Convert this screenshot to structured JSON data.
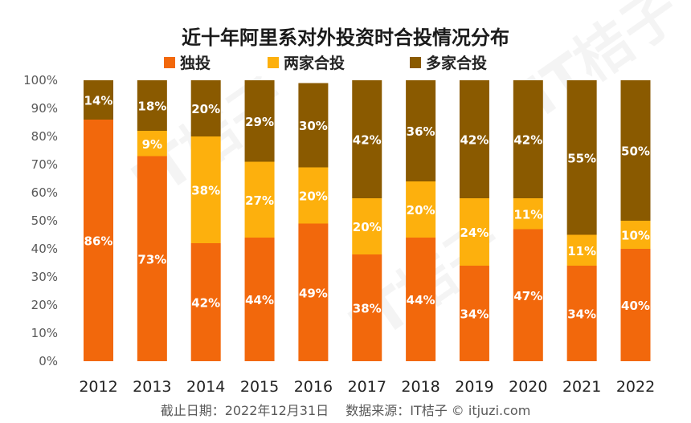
{
  "chart_data": {
    "type": "bar",
    "stacked": true,
    "title": "近十年阿里系对外投资时合投情况分布",
    "categories": [
      "2012",
      "2013",
      "2014",
      "2015",
      "2016",
      "2017",
      "2018",
      "2019",
      "2020",
      "2021",
      "2022"
    ],
    "series": [
      {
        "name": "独投",
        "color": "#f2680c",
        "values": [
          86,
          73,
          42,
          44,
          49,
          38,
          44,
          34,
          47,
          34,
          40
        ],
        "labels": [
          "86%",
          "73%",
          "42%",
          "44%",
          "49%",
          "38%",
          "44%",
          "34%",
          "47%",
          "34%",
          "40%"
        ]
      },
      {
        "name": "两家合投",
        "color": "#fdb00d",
        "values": [
          0,
          9,
          38,
          27,
          20,
          20,
          20,
          24,
          11,
          11,
          10
        ],
        "labels": [
          "",
          "9%",
          "38%",
          "27%",
          "20%",
          "20%",
          "20%",
          "24%",
          "11%",
          "11%",
          "10%"
        ]
      },
      {
        "name": "多家合投",
        "color": "#8a5a00",
        "values": [
          14,
          18,
          20,
          29,
          30,
          42,
          36,
          42,
          42,
          55,
          50
        ],
        "labels": [
          "14%",
          "18%",
          "20%",
          "29%",
          "30%",
          "42%",
          "36%",
          "42%",
          "42%",
          "55%",
          "50%"
        ]
      }
    ],
    "yticks": [
      "0%",
      "10%",
      "20%",
      "30%",
      "40%",
      "50%",
      "60%",
      "70%",
      "80%",
      "90%",
      "100%"
    ],
    "ylim": [
      0,
      100
    ],
    "grid": false,
    "legend_position": "top"
  },
  "footer": "截止日期：2022年12月31日　 数据来源：IT桔子 © itjuzi.com",
  "watermark": "IT桔子"
}
